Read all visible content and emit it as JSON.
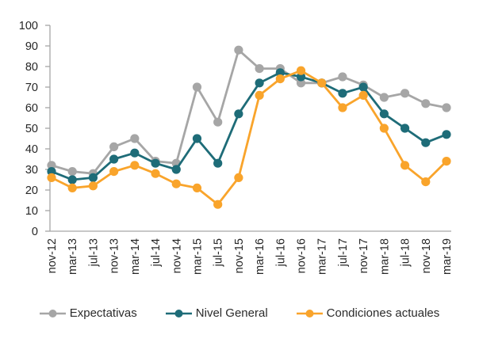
{
  "chart_data": {
    "type": "line",
    "title": "",
    "xlabel": "",
    "ylabel": "",
    "categories": [
      "nov-12",
      "mar-13",
      "jul-13",
      "nov-13",
      "mar-14",
      "jul-14",
      "nov-14",
      "mar-15",
      "jul-15",
      "nov-15",
      "mar-16",
      "jul-16",
      "nov-16",
      "mar-17",
      "jul-17",
      "nov-17",
      "mar-18",
      "jul-18",
      "nov-18",
      "mar-19"
    ],
    "series": [
      {
        "name": "Expectativas",
        "color": "#a6a6a6",
        "values": [
          32,
          29,
          28,
          41,
          45,
          34,
          33,
          70,
          53,
          88,
          79,
          79,
          72,
          72,
          75,
          71,
          65,
          67,
          62,
          60
        ]
      },
      {
        "name": "Nivel General",
        "color": "#1e6c78",
        "values": [
          29,
          25,
          26,
          35,
          38,
          33,
          30,
          45,
          33,
          57,
          72,
          77,
          75,
          72,
          67,
          70,
          57,
          50,
          43,
          47
        ]
      },
      {
        "name": "Condiciones actuales",
        "color": "#f9a42b",
        "values": [
          26,
          21,
          22,
          29,
          32,
          28,
          23,
          21,
          13,
          26,
          66,
          74,
          78,
          72,
          60,
          66,
          50,
          32,
          24,
          34
        ]
      }
    ],
    "ylim": [
      0,
      100
    ],
    "ytick_step": 10,
    "yticks": [
      0,
      10,
      20,
      30,
      40,
      50,
      60,
      70,
      80,
      90,
      100
    ],
    "grid": false,
    "legend_position": "bottom",
    "axis_color": "#a6a6a6",
    "label_color": "#262626",
    "marker_style": "circle",
    "x_labels_rotated": true
  }
}
